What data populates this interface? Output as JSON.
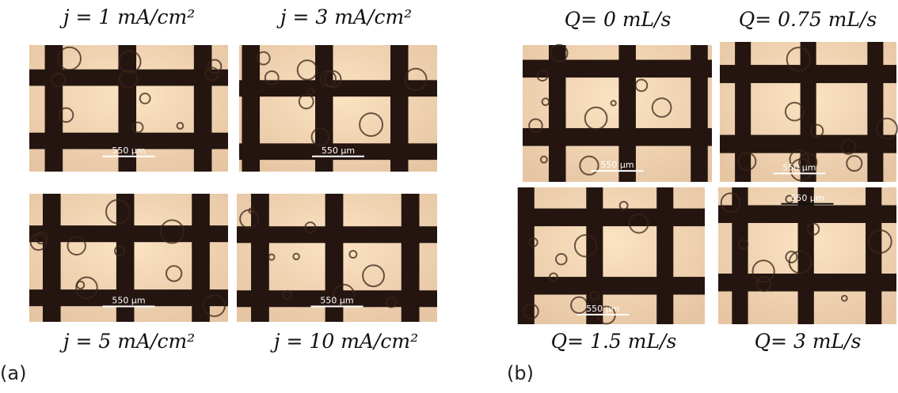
{
  "panels": [
    {
      "label": "(a)",
      "images": [
        {
          "caption": "j = 1 mA/cm²",
          "scale_bar": "550 µm"
        },
        {
          "caption": "j = 3 mA/cm²",
          "scale_bar": "550 µm"
        },
        {
          "caption": "j = 5 mA/cm²",
          "scale_bar": "550 µm"
        },
        {
          "caption": "j = 10 mA/cm²",
          "scale_bar": "550 µm"
        }
      ]
    },
    {
      "label": "(b)",
      "images": [
        {
          "caption": "Q= 0 mL/s",
          "scale_bar": "550 µm"
        },
        {
          "caption": "Q= 0.75 mL/s",
          "scale_bar": "550 µm"
        },
        {
          "caption": "Q= 1.5 mL/s",
          "scale_bar": "550 µm"
        },
        {
          "caption": "Q= 3 mL/s",
          "scale_bar": "550 µm"
        }
      ]
    }
  ]
}
